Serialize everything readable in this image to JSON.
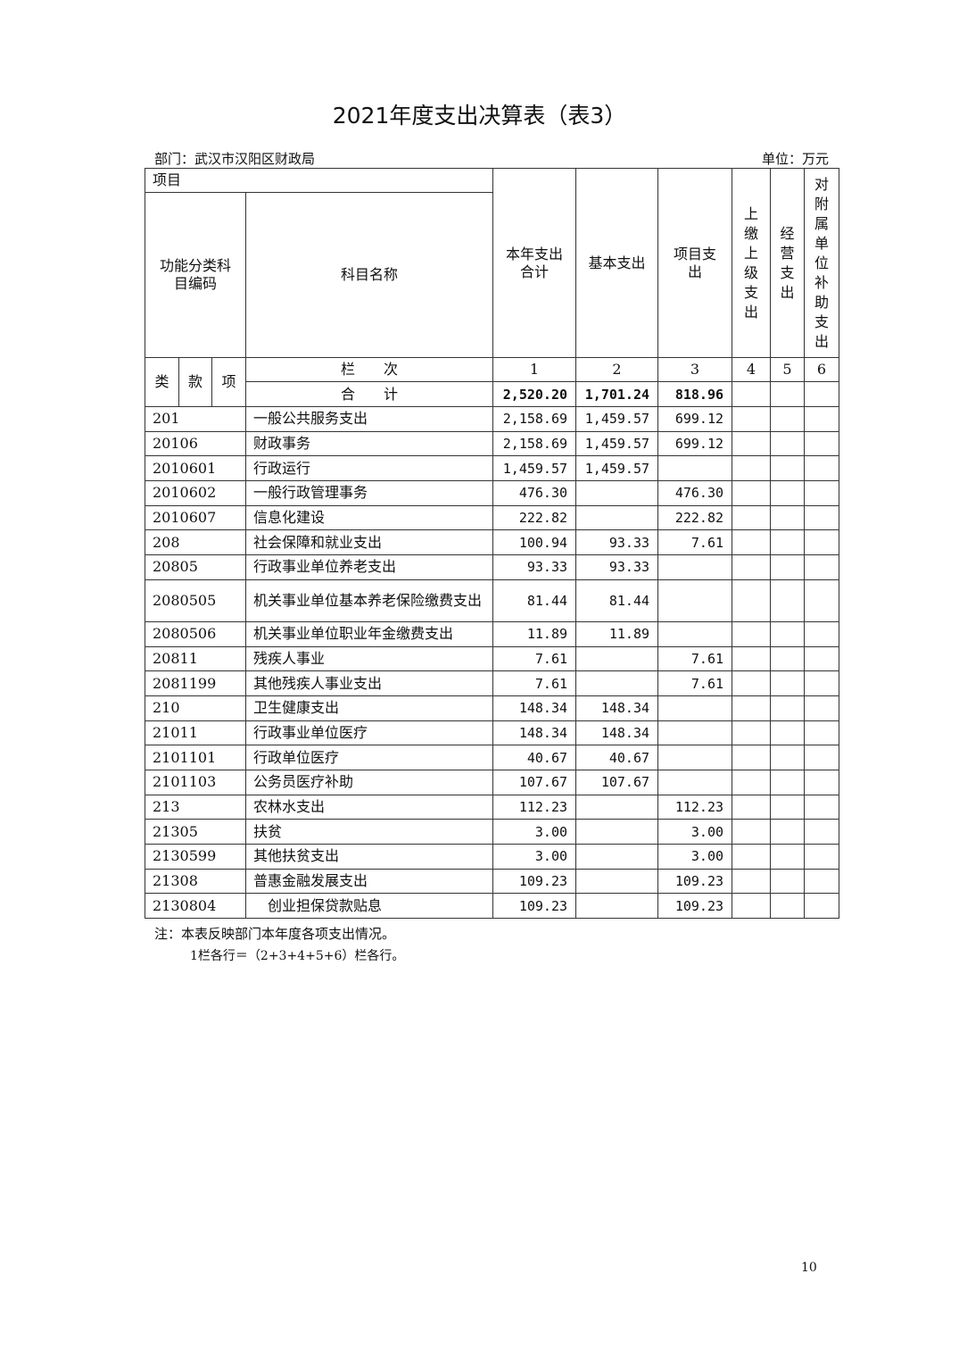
{
  "title": "2021年度支出决算表（表3）",
  "department": "部门：武汉市汉阳区财政局",
  "unit": "单位：万元",
  "header": {
    "project": "项目",
    "code": "功能分类科目编码",
    "name": "科目名称",
    "col1": "本年支出合计",
    "col2": "基本支出",
    "col3": "项目支出",
    "col4": "上缴上级支出",
    "col5": "经营支出",
    "col6": "对附属单位补助支出",
    "lei": "类",
    "kuan": "款",
    "xiang": "项",
    "lanci": "栏　　次",
    "nums": [
      "1",
      "2",
      "3",
      "4",
      "5",
      "6"
    ],
    "total_label": "合　　计",
    "total": [
      "2,520.20",
      "1,701.24",
      "818.96",
      "",
      "",
      ""
    ]
  },
  "rows": [
    {
      "code": "201",
      "name": "一般公共服务支出",
      "v": [
        "2,158.69",
        "1,459.57",
        "699.12"
      ]
    },
    {
      "code": "20106",
      "name": "财政事务",
      "v": [
        "2,158.69",
        "1,459.57",
        "699.12"
      ]
    },
    {
      "code": "2010601",
      "name": "行政运行",
      "v": [
        "1,459.57",
        "1,459.57",
        ""
      ]
    },
    {
      "code": "2010602",
      "name": "一般行政管理事务",
      "v": [
        "476.30",
        "",
        "476.30"
      ]
    },
    {
      "code": "2010607",
      "name": "信息化建设",
      "v": [
        "222.82",
        "",
        "222.82"
      ]
    },
    {
      "code": "208",
      "name": "社会保障和就业支出",
      "v": [
        "100.94",
        "93.33",
        "7.61"
      ]
    },
    {
      "code": "20805",
      "name": "行政事业单位养老支出",
      "v": [
        "93.33",
        "93.33",
        ""
      ]
    },
    {
      "code": "2080505",
      "name": "机关事业单位基本养老保险缴费支出",
      "v": [
        "81.44",
        "81.44",
        ""
      ]
    },
    {
      "code": "2080506",
      "name": "机关事业单位职业年金缴费支出",
      "v": [
        "11.89",
        "11.89",
        ""
      ]
    },
    {
      "code": "20811",
      "name": "残疾人事业",
      "v": [
        "7.61",
        "",
        "7.61"
      ]
    },
    {
      "code": "2081199",
      "name": "其他残疾人事业支出",
      "v": [
        "7.61",
        "",
        "7.61"
      ]
    },
    {
      "code": "210",
      "name": "卫生健康支出",
      "v": [
        "148.34",
        "148.34",
        ""
      ]
    },
    {
      "code": "21011",
      "name": "行政事业单位医疗",
      "v": [
        "148.34",
        "148.34",
        ""
      ]
    },
    {
      "code": "2101101",
      "name": "行政单位医疗",
      "v": [
        "40.67",
        "40.67",
        ""
      ]
    },
    {
      "code": "2101103",
      "name": "公务员医疗补助",
      "v": [
        "107.67",
        "107.67",
        ""
      ]
    },
    {
      "code": "213",
      "name": "农林水支出",
      "v": [
        "112.23",
        "",
        "112.23"
      ]
    },
    {
      "code": "21305",
      "name": "扶贫",
      "v": [
        "3.00",
        "",
        "3.00"
      ]
    },
    {
      "code": "2130599",
      "name": "其他扶贫支出",
      "v": [
        "3.00",
        "",
        "3.00"
      ]
    },
    {
      "code": "21308",
      "name": "普惠金融发展支出",
      "v": [
        "109.23",
        "",
        "109.23"
      ]
    },
    {
      "code": "2130804",
      "name": "　创业担保贷款贴息",
      "v": [
        "109.23",
        "",
        "109.23"
      ]
    }
  ],
  "notes": [
    "注：本表反映部门本年度各项支出情况。",
    "1栏各行＝（2+3+4+5+6）栏各行。"
  ],
  "page_number": "10"
}
